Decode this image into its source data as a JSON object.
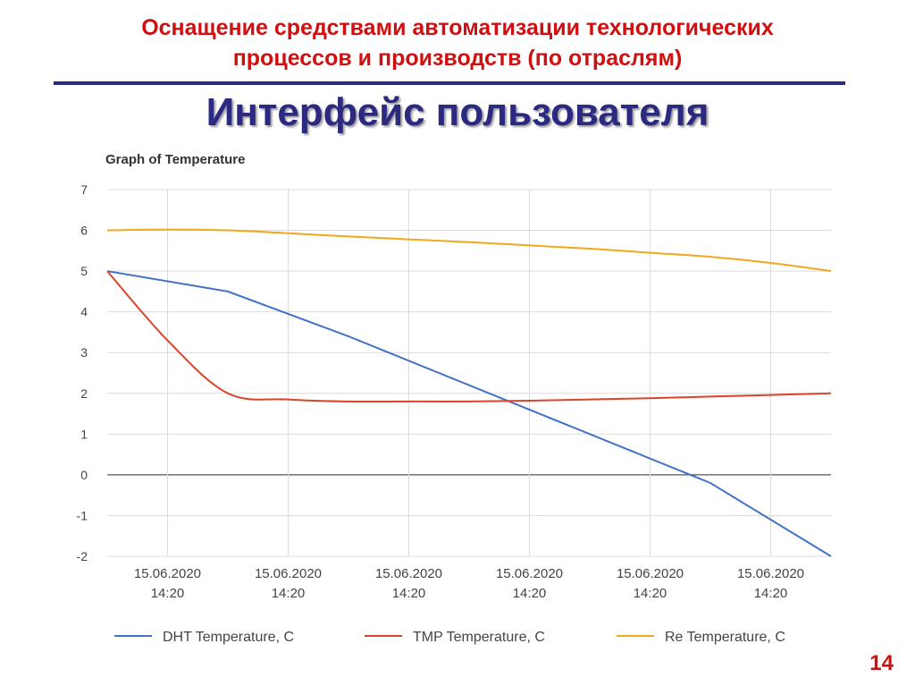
{
  "slide": {
    "title_line1": "Оснащение средствами автоматизации технологических",
    "title_line2": "процессов и производств (по отраслям)",
    "heading": "Интерфейс пользователя",
    "page_number": "14",
    "colors": {
      "title": "#d01010",
      "heading": "#2b2a80",
      "rule": "#2b2a80"
    }
  },
  "chart_data": {
    "type": "line",
    "title": "Graph of Temperature",
    "xlabel": "",
    "ylabel": "",
    "ylim": [
      -2,
      7
    ],
    "yticks": [
      -2,
      -1,
      0,
      1,
      2,
      3,
      4,
      5,
      6,
      7
    ],
    "grid": true,
    "legend_position": "bottom",
    "x_tick_labels": [
      [
        "15.06.2020",
        "14:20"
      ],
      [
        "15.06.2020",
        "14:20"
      ],
      [
        "15.06.2020",
        "14:20"
      ],
      [
        "15.06.2020",
        "14:20"
      ],
      [
        "15.06.2020",
        "14:20"
      ],
      [
        "15.06.2020",
        "14:20"
      ]
    ],
    "series": [
      {
        "name": "DHT Temperature, C",
        "color": "#4472c4",
        "x": [
          0,
          1,
          2,
          3,
          4,
          5,
          6
        ],
        "y": [
          5.0,
          4.5,
          3.4,
          2.2,
          1.0,
          -0.2,
          -2.0
        ]
      },
      {
        "name": "TMP Temperature, C",
        "color": "#d9442a",
        "x": [
          0,
          0.5,
          1,
          1.5,
          2,
          2.5,
          3,
          3.5,
          4,
          4.5,
          5,
          5.5,
          6
        ],
        "y": [
          5.0,
          3.3,
          2.0,
          1.85,
          1.8,
          1.8,
          1.8,
          1.82,
          1.85,
          1.88,
          1.92,
          1.96,
          2.0
        ]
      },
      {
        "name": "Re Temperature, C",
        "color": "#f0a820",
        "x": [
          0,
          0.5,
          1,
          1.5,
          2,
          2.5,
          3,
          3.5,
          4,
          4.5,
          5,
          5.5,
          6
        ],
        "y": [
          6.0,
          6.02,
          6.0,
          5.93,
          5.85,
          5.78,
          5.71,
          5.63,
          5.55,
          5.45,
          5.35,
          5.2,
          5.0
        ]
      }
    ]
  }
}
